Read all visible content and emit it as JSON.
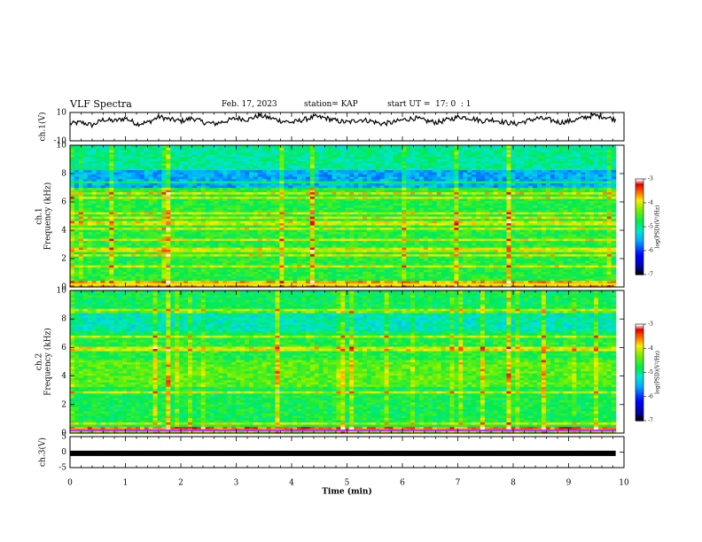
{
  "header": {
    "title": "VLF Spectra",
    "date": "Feb. 17, 2023",
    "station": "station= KAP",
    "start": "start UT =  17: 0  : 1"
  },
  "chart_data": [
    {
      "type": "line",
      "ylabel": "ch.1(V)",
      "ylim": [
        -10,
        10
      ],
      "yticks": [
        "10",
        "-10"
      ],
      "x_range_min": [
        0,
        9.85
      ],
      "values": [
        2,
        3,
        1,
        5,
        4,
        6,
        2,
        3,
        7,
        5,
        4,
        6,
        3,
        2,
        4,
        6,
        5,
        8,
        6,
        4,
        3,
        5,
        7,
        6,
        4,
        3,
        5,
        4,
        2,
        3,
        5,
        6,
        4,
        3,
        5,
        7,
        6,
        4,
        5,
        3,
        2,
        4,
        6,
        5,
        3,
        4,
        6,
        8,
        7,
        5
      ],
      "color": "#000000"
    },
    {
      "type": "heatmap",
      "ylabel": "ch.1\nFrequency (kHz)",
      "ylim": [
        0,
        10
      ],
      "yticks": [
        "0",
        "2",
        "4",
        "6",
        "8",
        "10"
      ],
      "colorbar": {
        "label": "log(PSD)(V²/Hz)",
        "range": [
          -7,
          -3
        ],
        "ticks": [
          "-3",
          "-4",
          "-5",
          "-6",
          "-7"
        ]
      }
    },
    {
      "type": "heatmap",
      "ylabel": "ch.2\nFrequency (kHz)",
      "ylim": [
        0,
        10
      ],
      "yticks": [
        "0",
        "2",
        "4",
        "6",
        "8",
        "10"
      ],
      "colorbar": {
        "label": "log(PSD)(V²/Hz)",
        "range": [
          -7,
          -3
        ],
        "ticks": [
          "-3",
          "-4",
          "-5",
          "-6",
          "-7"
        ]
      }
    },
    {
      "type": "line",
      "ylabel": "ch.3(V)",
      "ylim": [
        -5,
        5
      ],
      "yticks": [
        "5",
        "0",
        "-5"
      ],
      "x_range_min": [
        0,
        9.85
      ],
      "values": [
        -0.4,
        -0.4
      ],
      "color": "#000000"
    }
  ],
  "xaxis": {
    "label": "Time (min)",
    "range": [
      0,
      10
    ],
    "ticks": [
      "0",
      "1",
      "2",
      "3",
      "4",
      "5",
      "6",
      "7",
      "8",
      "9",
      "10"
    ]
  }
}
